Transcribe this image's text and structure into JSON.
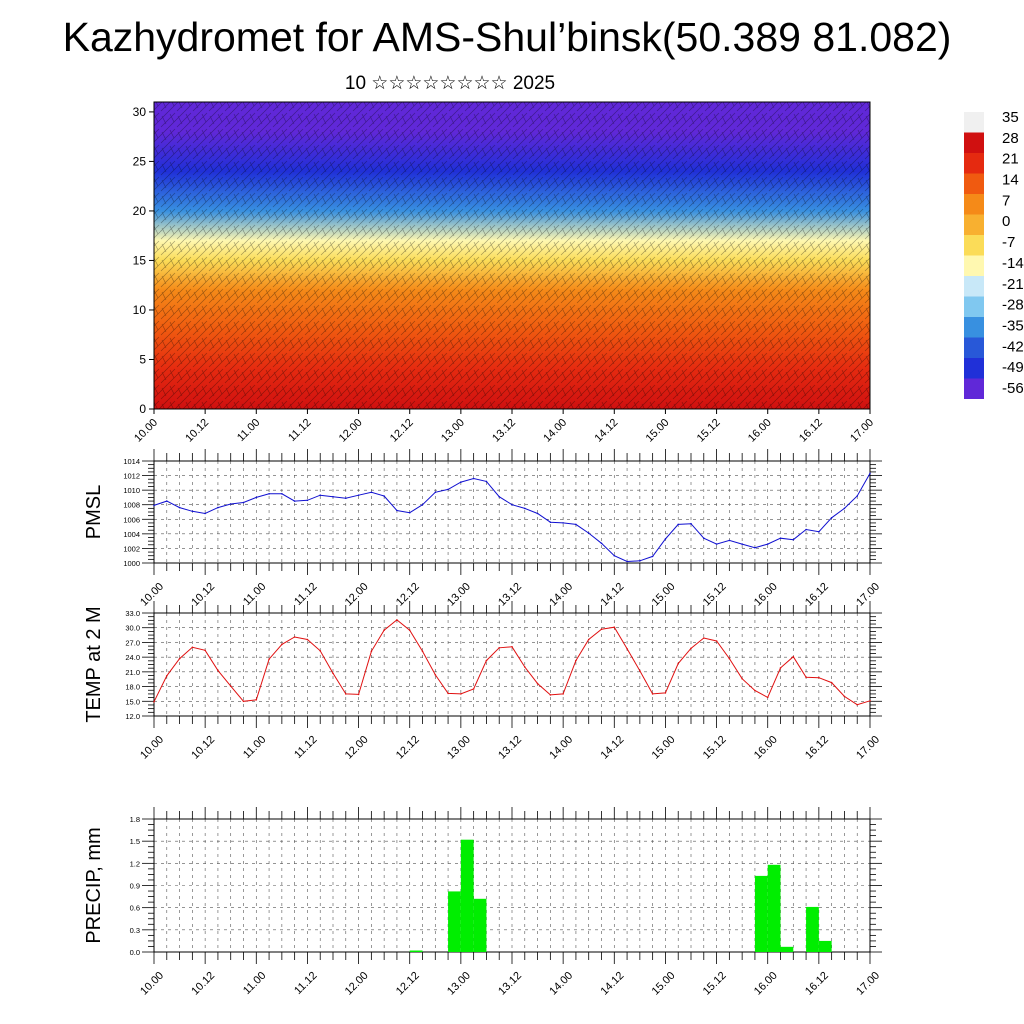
{
  "title": "Kazhydromet for AMS-Shul’binsk(50.389 81.082)",
  "subtitle": "10 ☆☆☆☆☆☆☆☆ 2025",
  "chart_data": [
    {
      "type": "heatmap",
      "description_kind": "cross-section",
      "x_tick_labels": [
        "10.00",
        "10.12",
        "11.00",
        "11.12",
        "12.00",
        "12.12",
        "13.00",
        "13.12",
        "14.00",
        "14.12",
        "15.00",
        "15.12",
        "16.00",
        "16.12",
        "17.00"
      ],
      "y_ticks": [
        0,
        5,
        10,
        15,
        20,
        25,
        30
      ],
      "ylim": [
        0,
        31
      ],
      "colorbar_labels": [
        "35",
        "28",
        "21",
        "14",
        "7",
        "0",
        "-7",
        "-14",
        "-21",
        "-28",
        "-35",
        "-42",
        "-49",
        "-56"
      ],
      "colorbar_colors": [
        "#f0f0f0",
        "#d01010",
        "#e52a10",
        "#f05a10",
        "#f58a18",
        "#f8b030",
        "#fbdc58",
        "#fff8b0",
        "#c8e8f8",
        "#80c8f0",
        "#3890e0",
        "#2858d8",
        "#2030d8",
        "#6028d8"
      ],
      "temperature_profile": {
        "heights": [
          0,
          4,
          8,
          12,
          15,
          17,
          20,
          24,
          28,
          31
        ],
        "values": [
          30,
          26,
          20,
          10,
          -6,
          -14,
          -32,
          -45,
          -53,
          -56
        ]
      }
    },
    {
      "type": "line",
      "ylabel": "PMSL",
      "ylim": [
        1000,
        1014
      ],
      "y_ticks": [
        1000,
        1002,
        1004,
        1006,
        1008,
        1010,
        1012,
        1014
      ],
      "y_tick_labels": [
        "1000",
        "1002",
        "1004",
        "1006",
        "1008",
        "1010",
        "1012",
        "1014"
      ],
      "x_tick_labels": [
        "10.00",
        "10.12",
        "11.00",
        "11.12",
        "12.00",
        "12.12",
        "13.00",
        "13.12",
        "14.00",
        "14.12",
        "15.00",
        "15.12",
        "16.00",
        "16.12",
        "17.00"
      ],
      "x_hours": [
        0,
        3,
        6,
        9,
        12,
        15,
        18,
        21,
        24,
        27,
        30,
        33,
        36,
        39,
        42,
        45,
        48,
        51,
        54,
        57,
        60,
        63,
        66,
        69,
        72,
        75,
        78,
        81,
        84,
        87,
        90,
        93,
        96,
        99,
        102,
        105,
        108,
        111,
        114,
        117,
        120,
        123,
        126,
        129,
        132,
        135,
        138,
        141,
        144,
        147,
        150,
        153,
        156,
        159,
        162,
        165,
        168
      ],
      "series": [
        {
          "color": "#1010d0",
          "values": [
            1007.9,
            1008.5,
            1007.6,
            1007.1,
            1006.8,
            1007.6,
            1008.1,
            1008.3,
            1009.0,
            1009.5,
            1009.5,
            1008.5,
            1008.6,
            1009.3,
            1009.1,
            1008.9,
            1009.3,
            1009.7,
            1009.2,
            1007.2,
            1006.9,
            1008.0,
            1009.7,
            1010.1,
            1011.1,
            1011.6,
            1011.2,
            1009.1,
            1008.0,
            1007.5,
            1006.8,
            1005.6,
            1005.5,
            1005.3,
            1004.1,
            1002.7,
            1001.0,
            1000.2,
            1000.3,
            1000.9,
            1003.3,
            1005.3,
            1005.4,
            1003.4,
            1002.6,
            1003.1,
            1002.6,
            1002.1,
            1002.6,
            1003.4,
            1003.2,
            1004.6,
            1004.3,
            1006.2,
            1007.5,
            1009.2,
            1012.3
          ]
        }
      ]
    },
    {
      "type": "line",
      "ylabel": "TEMP at 2 M",
      "ylim": [
        12,
        33
      ],
      "y_ticks": [
        12,
        15,
        18,
        21,
        24,
        27,
        30,
        33
      ],
      "y_tick_labels": [
        "12.0",
        "15.0",
        "18.0",
        "21.0",
        "24.0",
        "27.0",
        "30.0",
        "33.0"
      ],
      "x_tick_labels": [
        "10.00",
        "10.12",
        "11.00",
        "11.12",
        "12.00",
        "12.12",
        "13.00",
        "13.12",
        "14.00",
        "14.12",
        "15.00",
        "15.12",
        "16.00",
        "16.12",
        "17.00"
      ],
      "x_hours": [
        0,
        3,
        6,
        9,
        12,
        15,
        18,
        21,
        24,
        27,
        30,
        33,
        36,
        39,
        42,
        45,
        48,
        51,
        54,
        57,
        60,
        63,
        66,
        69,
        72,
        75,
        78,
        81,
        84,
        87,
        90,
        93,
        96,
        99,
        102,
        105,
        108,
        111,
        114,
        117,
        120,
        123,
        126,
        129,
        132,
        135,
        138,
        141,
        144,
        147,
        150,
        153,
        156,
        159,
        162,
        165,
        168
      ],
      "series": [
        {
          "color": "#e01010",
          "values": [
            14.9,
            20.2,
            23.7,
            26.0,
            25.4,
            21.3,
            18.1,
            15.0,
            15.3,
            23.6,
            26.6,
            28.1,
            27.6,
            25.3,
            20.7,
            16.5,
            16.4,
            25.2,
            29.5,
            31.6,
            29.5,
            25.2,
            20.4,
            16.6,
            16.5,
            17.5,
            23.3,
            25.9,
            26.1,
            22.0,
            18.6,
            16.3,
            16.5,
            23.3,
            27.6,
            29.7,
            30.1,
            25.7,
            21.2,
            16.5,
            16.7,
            22.7,
            25.8,
            27.9,
            27.3,
            23.7,
            19.6,
            17.2,
            15.8,
            21.8,
            24.1,
            19.9,
            19.8,
            18.8,
            16.0,
            14.3,
            15.1
          ]
        }
      ]
    },
    {
      "type": "bar",
      "ylabel": "PRECIP, mm",
      "ylim": [
        0,
        1.8
      ],
      "y_ticks": [
        0,
        0.3,
        0.6,
        0.9,
        1.2,
        1.5,
        1.8
      ],
      "y_tick_labels": [
        "0.0",
        "0.3",
        "0.6",
        "0.9",
        "1.2",
        "1.5",
        "1.8"
      ],
      "x_tick_labels": [
        "10.00",
        "10.12",
        "11.00",
        "11.12",
        "12.00",
        "12.12",
        "13.00",
        "13.12",
        "14.00",
        "14.12",
        "15.00",
        "15.12",
        "16.00",
        "16.12",
        "17.00"
      ],
      "bar_color": "#00ee00",
      "bars": [
        {
          "start_hour": 60,
          "end_hour": 63,
          "value": 0.02
        },
        {
          "start_hour": 69,
          "end_hour": 72,
          "value": 0.82
        },
        {
          "start_hour": 72,
          "end_hour": 75,
          "value": 1.52
        },
        {
          "start_hour": 75,
          "end_hour": 78,
          "value": 0.72
        },
        {
          "start_hour": 141,
          "end_hour": 144,
          "value": 1.03
        },
        {
          "start_hour": 144,
          "end_hour": 147,
          "value": 1.18
        },
        {
          "start_hour": 147,
          "end_hour": 150,
          "value": 0.07
        },
        {
          "start_hour": 153,
          "end_hour": 156,
          "value": 0.61
        },
        {
          "start_hour": 156,
          "end_hour": 159,
          "value": 0.15
        }
      ]
    }
  ]
}
